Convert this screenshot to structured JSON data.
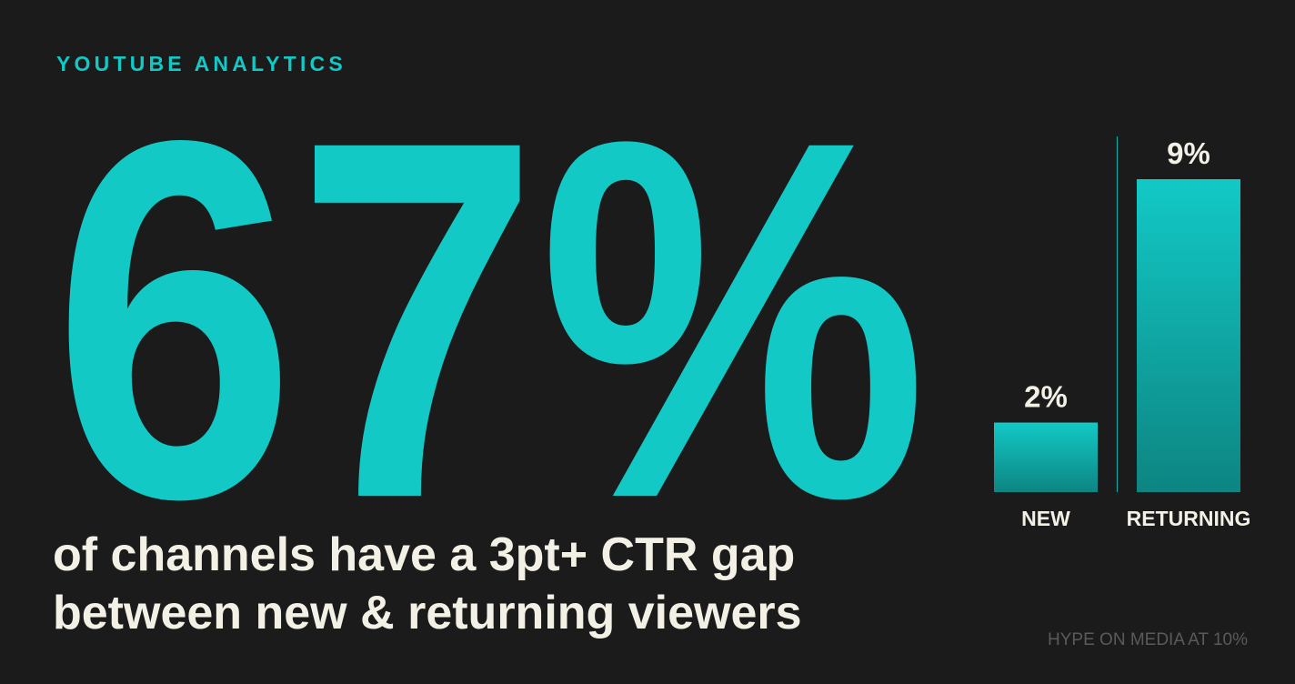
{
  "eyebrow": "YOUTUBE ANALYTICS",
  "headline": "67%",
  "subtitle_lines": [
    "of channels have a 3pt+ CTR gap",
    "between new & returning viewers"
  ],
  "footer": "HYPE ON MEDIA AT 10%",
  "chart_data": {
    "type": "bar",
    "categories": [
      "NEW",
      "RETURNING"
    ],
    "values": [
      2,
      9
    ],
    "value_labels": [
      "2%",
      "9%"
    ],
    "color": "#12c9c6"
  }
}
